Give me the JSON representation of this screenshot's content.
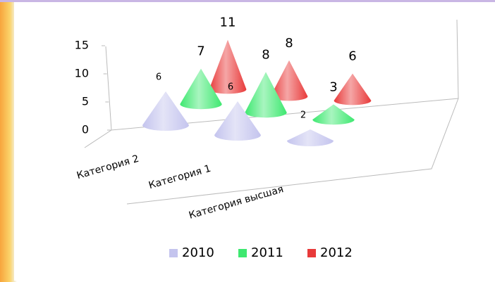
{
  "chart_data": {
    "type": "cone3d",
    "categories": [
      "Категория 2",
      "Категория 1",
      "Категория высшая"
    ],
    "series": [
      {
        "name": "2010",
        "color": "#c4c4ee",
        "values": [
          6,
          6,
          2
        ]
      },
      {
        "name": "2011",
        "color": "#3ee870",
        "values": [
          7,
          8,
          3
        ]
      },
      {
        "name": "2012",
        "color": "#e83a3a",
        "values": [
          11,
          8,
          6
        ]
      }
    ],
    "ylim": [
      0,
      15
    ],
    "yticks": [
      0,
      5,
      10,
      15
    ],
    "legend": "bottom"
  }
}
